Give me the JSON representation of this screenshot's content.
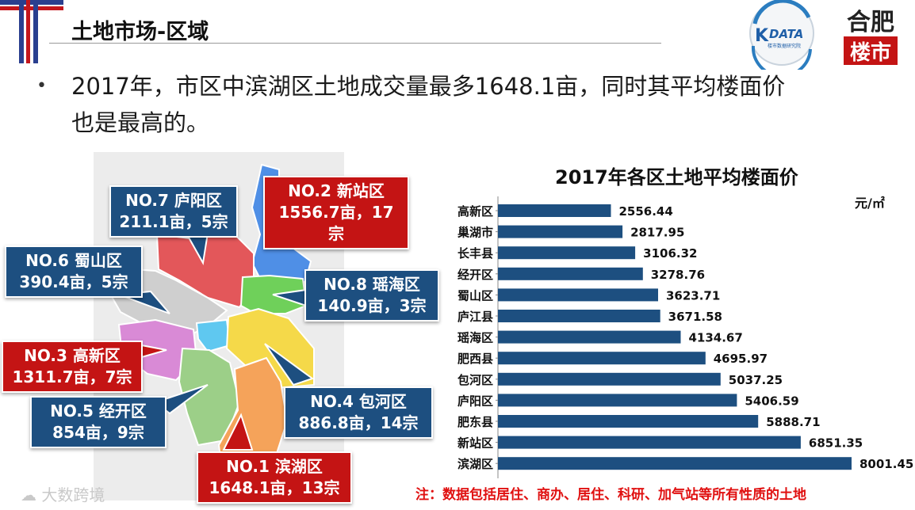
{
  "header": {
    "title": "土地市场-区域"
  },
  "bullet": {
    "line1": "2017年，市区中滨湖区土地成交量最多1648.1亩，同时其平均楼面价",
    "line2": "也是最高的。"
  },
  "logos": {
    "kdata_main": "DATA",
    "kdata_letter": "K",
    "kdata_sub": "楼市数据研究院",
    "hefei_top": "合肥",
    "hefei_bottom": "楼市"
  },
  "map": {
    "callouts": [
      {
        "id": "luyang",
        "title": "NO.7 庐阳区",
        "detail": "211.1亩，5宗",
        "style": "blue"
      },
      {
        "id": "xinzhan",
        "title": "NO.2  新站区",
        "detail": "1556.7亩，17宗",
        "style": "red"
      },
      {
        "id": "shushan",
        "title": "NO.6  蜀山区",
        "detail": "390.4亩，5宗",
        "style": "blue"
      },
      {
        "id": "yaohai",
        "title": "NO.8  瑶海区",
        "detail": "140.9亩，3宗",
        "style": "blue"
      },
      {
        "id": "gaoxin",
        "title": "NO.3  高新区",
        "detail": "1311.7亩，7宗",
        "style": "red"
      },
      {
        "id": "baohe",
        "title": "NO.4  包河区",
        "detail": "886.8亩，14宗",
        "style": "blue"
      },
      {
        "id": "jingkai",
        "title": "NO.5  经开区",
        "detail": "854亩，9宗",
        "style": "blue"
      },
      {
        "id": "binhu",
        "title": "NO.1  滨湖区",
        "detail": "1648.1亩，13宗",
        "style": "red"
      }
    ],
    "region_colors": {
      "luyang": "#e3575a",
      "xinzhan": "#4f8fe6",
      "shushan": "#cfcfcf",
      "yaohai": "#6fd05a",
      "gaoxin": "#d98ad6",
      "center": "#5fc8f0",
      "baohe": "#f5d949",
      "jingkai": "#9ccf88",
      "binhu": "#f5a35a"
    }
  },
  "chart_data": {
    "type": "bar",
    "orientation": "horizontal",
    "title": "2017年各区土地平均楼面价",
    "unit": "元/㎡",
    "categories": [
      "高新区",
      "巢湖市",
      "长丰县",
      "经开区",
      "蜀山区",
      "庐江县",
      "瑶海区",
      "肥西县",
      "包河区",
      "庐阳区",
      "肥东县",
      "新站区",
      "滨湖区"
    ],
    "values": [
      2556.44,
      2817.95,
      3106.32,
      3278.76,
      3623.71,
      3671.58,
      4134.67,
      4695.97,
      5037.25,
      5406.59,
      5888.71,
      6851.35,
      8001.45
    ],
    "labels": [
      "2556.44",
      "2817.95",
      "3106.32",
      "3278.76",
      "3623.71",
      "3671.58",
      "4134.67",
      "4695.97",
      "5037.25",
      "5406.59",
      "5888.71",
      "6851.35",
      "8001.45"
    ],
    "bar_color": "#1d4f80",
    "grid": false
  },
  "footnote": "注：数据包括居住、商办、居住、科研、加气站等所有性质的土地",
  "watermark": "大数跨境"
}
